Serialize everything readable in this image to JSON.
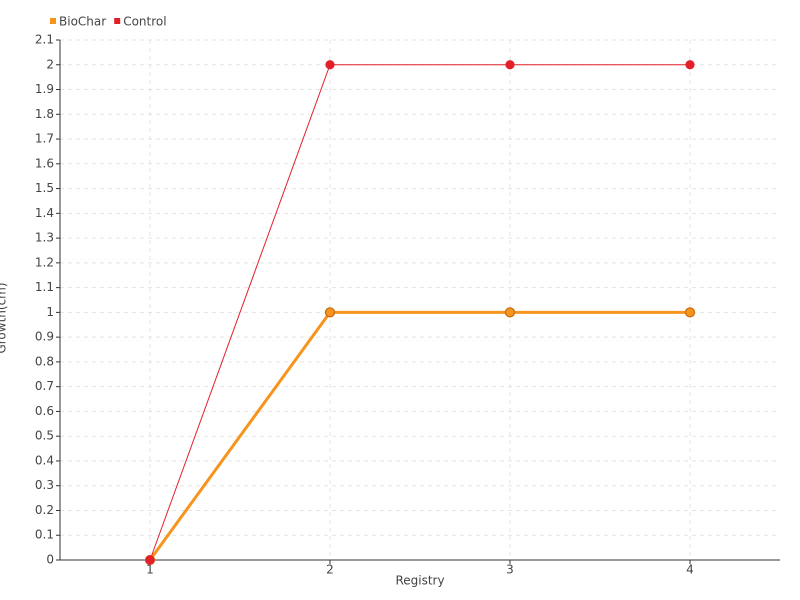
{
  "chart_data": {
    "type": "line",
    "x_label": "Registry",
    "y_label": "Growth(cm)",
    "categories": [
      "1",
      "2",
      "3",
      "4"
    ],
    "series": [
      {
        "name": "BioChar",
        "color": "#f7941d",
        "values": [
          0,
          1,
          1,
          1
        ]
      },
      {
        "name": "Control",
        "color": "#e3202a",
        "values": [
          0,
          2,
          2,
          2
        ]
      }
    ],
    "ylim": [
      0,
      2.1
    ],
    "yticks": [
      0,
      0.1,
      0.2,
      0.3,
      0.4,
      0.5,
      0.6,
      0.7,
      0.8,
      0.9,
      1,
      1.1,
      1.2,
      1.3,
      1.4,
      1.5,
      1.6,
      1.7,
      1.8,
      1.9,
      2,
      2.1
    ],
    "grid": true,
    "legend": "top-left"
  }
}
